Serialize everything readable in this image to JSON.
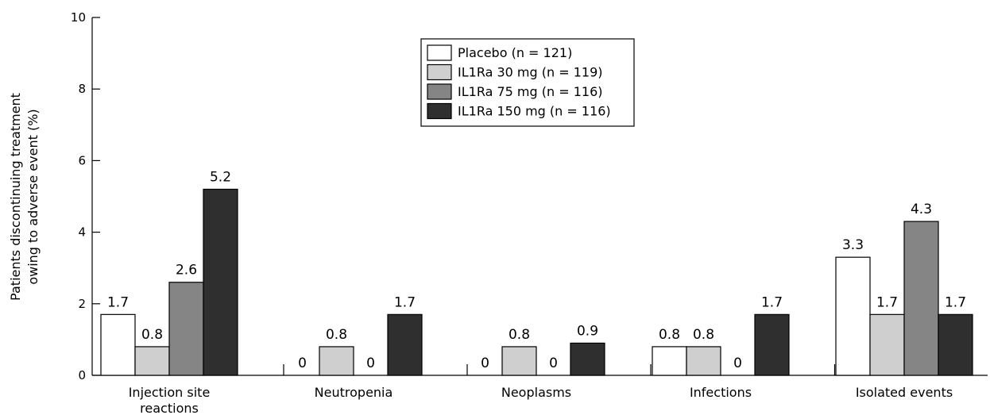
{
  "chart_data": {
    "type": "bar",
    "ylabel_lines": [
      "Patients discontinuing treatment",
      "owing to adverse event (%)"
    ],
    "ylim": [
      0,
      10
    ],
    "yticks": [
      0,
      2,
      4,
      6,
      8,
      10
    ],
    "categories": [
      [
        "Injection site",
        "reactions"
      ],
      [
        "Neutropenia"
      ],
      [
        "Neoplasms"
      ],
      [
        "Infections"
      ],
      [
        "Isolated events"
      ]
    ],
    "series": [
      {
        "name": "Placebo (n = 121)",
        "color": "#ffffff",
        "values": [
          1.7,
          0,
          0,
          0.8,
          3.3
        ],
        "labels": [
          "1.7",
          "0",
          "0",
          "0.8",
          "3.3"
        ]
      },
      {
        "name": "IL1Ra 30 mg (n = 119)",
        "color": "#cfcfcf",
        "values": [
          0.8,
          0.8,
          0.8,
          0.8,
          1.7
        ],
        "labels": [
          "0.8",
          "0.8",
          "0.8",
          "0.8",
          "1.7"
        ]
      },
      {
        "name": "IL1Ra 75 mg (n = 116)",
        "color": "#858585",
        "values": [
          2.6,
          0,
          0,
          0,
          4.3
        ],
        "labels": [
          "2.6",
          "0",
          "0",
          "0",
          "4.3"
        ]
      },
      {
        "name": "IL1Ra 150 mg (n = 116)",
        "color": "#2f2f2f",
        "values": [
          5.2,
          1.7,
          0.9,
          1.7,
          1.7
        ],
        "labels": [
          "5.2",
          "1.7",
          "0.9",
          "1.7",
          "1.7"
        ]
      }
    ],
    "legend_position": "top-center",
    "grid": false
  }
}
